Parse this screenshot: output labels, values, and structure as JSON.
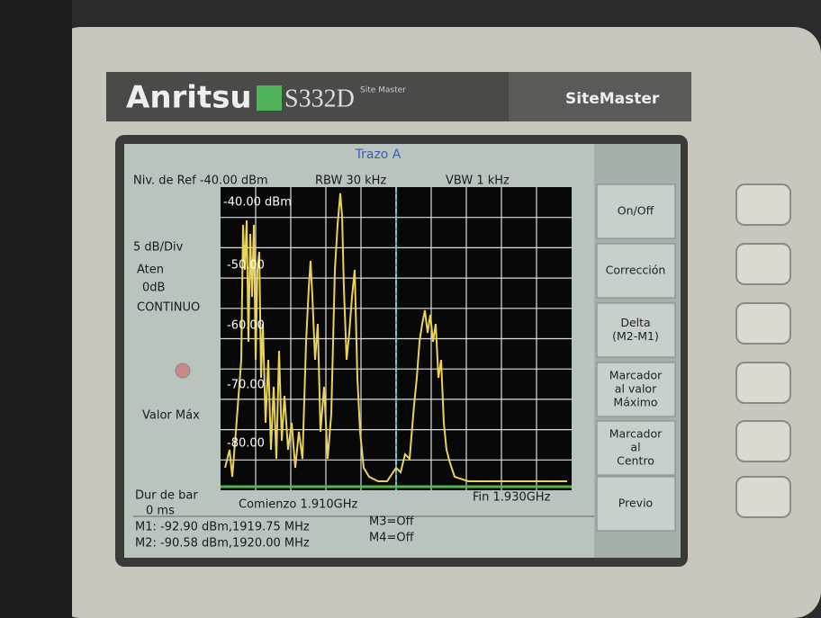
{
  "device": {
    "brand": "Anritsu",
    "model": "S332D",
    "model_suffix": "Site Master",
    "product": "SiteMaster"
  },
  "screen": {
    "title": "Trazo A",
    "header": {
      "ref_level": "Niv. de Ref -40.00 dBm",
      "rbw": "RBW  30 kHz",
      "vbw": "VBW  1 kHz"
    },
    "scale_labels": [
      "-40.00 dBm",
      "-50.00",
      "-60.00",
      "-70.00",
      "-80.00"
    ],
    "side": {
      "scale": "5 dB/Div",
      "atten_label": "Aten",
      "atten_value": "0dB",
      "mode": "CONTINUO",
      "detector": "Valor Máx",
      "sweep_label": "Dur de bar",
      "sweep_value": "0 ms"
    },
    "footer": {
      "start": "Comienzo  1.910GHz",
      "stop": "Fin  1.930GHz"
    },
    "markers": [
      [
        "M1: -92.90 dBm,1919.75 MHz",
        "M3=Off"
      ],
      [
        "M2: -90.58 dBm,1920.00 MHz",
        "M4=Off"
      ]
    ],
    "softkeys": [
      [
        "On/Off"
      ],
      [
        "Corrección"
      ],
      [
        "Delta",
        "(M2-M1)"
      ],
      [
        "Marcador",
        "al valor",
        "Máximo"
      ],
      [
        "Marcador",
        "al",
        "Centro"
      ],
      [
        "Previo"
      ]
    ]
  }
}
